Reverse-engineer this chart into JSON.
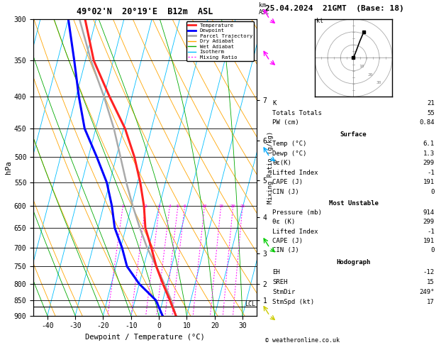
{
  "title_left": "49°02'N  20°19'E  B12m  ASL",
  "title_right": "25.04.2024  21GMT  (Base: 18)",
  "xlabel": "Dewpoint / Temperature (°C)",
  "ylabel_left": "hPa",
  "stats": {
    "K": 21,
    "Totals_Totals": 55,
    "PW_cm": 0.84,
    "Surface_Temp": 6.1,
    "Surface_Dewp": 1.3,
    "Surface_theta_e": 299,
    "Surface_Lifted_Index": -1,
    "Surface_CAPE": 191,
    "Surface_CIN": 0,
    "MU_Pressure": 914,
    "MU_theta_e": 299,
    "MU_Lifted_Index": -1,
    "MU_CAPE": 191,
    "MU_CIN": 0,
    "EH": -12,
    "SREH": 15,
    "StmDir": 249,
    "StmSpd": 17
  },
  "pmin": 300,
  "pmax": 900,
  "Tmin": -45,
  "Tmax": 35,
  "skew_factor": 27.5,
  "p_ticks": [
    300,
    350,
    400,
    450,
    500,
    550,
    600,
    650,
    700,
    750,
    800,
    850,
    900
  ],
  "x_ticks": [
    -40,
    -30,
    -20,
    -10,
    0,
    10,
    20,
    30
  ],
  "isotherm_color": "#00bfff",
  "dry_adiabat_color": "#ffa500",
  "wet_adiabat_color": "#00aa00",
  "mixing_ratio_color": "#ff00ff",
  "temp_color": "#ff2222",
  "dewpoint_color": "#0000ff",
  "parcel_color": "#aaaaaa",
  "temperature_profile": {
    "pressure": [
      900,
      850,
      800,
      750,
      700,
      650,
      600,
      550,
      500,
      450,
      400,
      350,
      300
    ],
    "temp": [
      6.1,
      2.5,
      -1.5,
      -5.5,
      -9.0,
      -13.0,
      -15.5,
      -19.0,
      -23.5,
      -29.5,
      -38.0,
      -47.0,
      -54.0
    ]
  },
  "dewpoint_profile": {
    "pressure": [
      900,
      850,
      800,
      750,
      700,
      650,
      600,
      550,
      500,
      450,
      400,
      350,
      300
    ],
    "temp": [
      1.3,
      -2.5,
      -10.0,
      -16.0,
      -19.5,
      -24.0,
      -27.0,
      -31.0,
      -37.0,
      -44.0,
      -49.0,
      -54.0,
      -60.0
    ]
  },
  "parcel_profile": {
    "pressure": [
      900,
      850,
      800,
      750,
      700,
      650,
      600,
      550,
      500,
      450,
      400,
      350,
      300
    ],
    "temp": [
      6.1,
      3.0,
      -1.0,
      -5.5,
      -10.5,
      -15.0,
      -19.5,
      -24.0,
      -28.5,
      -33.5,
      -40.0,
      -48.0,
      -56.0
    ]
  },
  "lcl_pressure": 870,
  "mixing_ratios": [
    1,
    2,
    3,
    4,
    5,
    6,
    10,
    15,
    20,
    25
  ],
  "km_labels": {
    "1": 850,
    "2": 800,
    "3": 715,
    "4": 625,
    "5": 545,
    "6": 470,
    "7": 405
  },
  "wind_barbs": [
    {
      "pressure": 900,
      "color": "#cccc00",
      "u": -3,
      "v": -5
    },
    {
      "pressure": 700,
      "color": "#00cc00",
      "u": -2,
      "v": -6
    },
    {
      "pressure": 500,
      "color": "#00aaff",
      "u": -1,
      "v": -4
    },
    {
      "pressure": 350,
      "color": "#ff00ff",
      "u": 3,
      "v": -8
    },
    {
      "pressure": 300,
      "color": "#ff00ff",
      "u": 4,
      "v": -10
    }
  ]
}
